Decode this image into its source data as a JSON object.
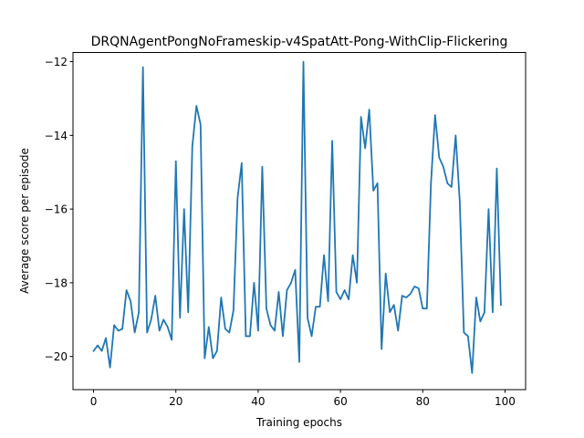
{
  "chart_data": {
    "type": "line",
    "title": "DRQNAgentPongNoFrameskip-v4SpatAtt-Pong-WithClip-Flickering",
    "xlabel": "Training epochs",
    "ylabel": "Average score per episode",
    "xlim": [
      -5,
      105
    ],
    "ylim": [
      -20.9,
      -11.75
    ],
    "xticks": [
      0,
      20,
      40,
      60,
      80,
      100
    ],
    "yticks": [
      -20,
      -18,
      -16,
      -14,
      -12
    ],
    "xtick_labels": [
      "0",
      "20",
      "40",
      "60",
      "80",
      "100"
    ],
    "ytick_labels": [
      "−20",
      "−18",
      "−16",
      "−14",
      "−12"
    ],
    "grid": false,
    "line_color": "#1f77b4",
    "series": [
      {
        "x": [
          0,
          1,
          2,
          3,
          4,
          5,
          6,
          7,
          8,
          9,
          10,
          11,
          12,
          13,
          14,
          15,
          16,
          17,
          18,
          19,
          20,
          21,
          22,
          23,
          24,
          25,
          26,
          27,
          28,
          29,
          30,
          31,
          32,
          33,
          34,
          35,
          36,
          37,
          38,
          39,
          40,
          41,
          42,
          43,
          44,
          45,
          46,
          47,
          48,
          49,
          50,
          51,
          52,
          53,
          54,
          55,
          56,
          57,
          58,
          59,
          60,
          61,
          62,
          63,
          64,
          65,
          66,
          67,
          68,
          69,
          70,
          71,
          72,
          73,
          74,
          75,
          76,
          77,
          78,
          79,
          80,
          81,
          82,
          83,
          84,
          85,
          86,
          87,
          88,
          89,
          90,
          91,
          92,
          93,
          94,
          95,
          96,
          97,
          98,
          99
        ],
        "values": [
          -19.85,
          -19.7,
          -19.85,
          -19.5,
          -20.3,
          -19.15,
          -19.3,
          -19.25,
          -18.2,
          -18.5,
          -19.35,
          -18.8,
          -12.15,
          -19.35,
          -19.0,
          -18.35,
          -19.3,
          -19.0,
          -19.2,
          -19.55,
          -14.7,
          -18.95,
          -16.0,
          -18.8,
          -14.3,
          -13.2,
          -13.7,
          -20.05,
          -19.2,
          -20.05,
          -19.85,
          -18.4,
          -19.25,
          -19.35,
          -18.75,
          -15.7,
          -14.75,
          -19.45,
          -19.45,
          -18.0,
          -19.3,
          -14.85,
          -18.7,
          -19.15,
          -19.3,
          -18.25,
          -19.45,
          -18.2,
          -18.0,
          -17.65,
          -20.15,
          -12.0,
          -18.95,
          -19.45,
          -18.65,
          -18.65,
          -17.25,
          -18.5,
          -14.15,
          -18.25,
          -18.45,
          -18.2,
          -18.45,
          -17.25,
          -18.0,
          -13.5,
          -14.35,
          -13.3,
          -15.5,
          -15.3,
          -19.8,
          -17.75,
          -18.8,
          -18.6,
          -19.3,
          -18.35,
          -18.4,
          -18.3,
          -18.1,
          -18.15,
          -18.7,
          -18.7,
          -15.3,
          -13.45,
          -14.6,
          -14.85,
          -15.3,
          -15.4,
          -14.0,
          -15.8,
          -19.35,
          -19.45,
          -20.45,
          -18.4,
          -19.05,
          -18.8,
          -16.0,
          -18.8,
          -14.9,
          -18.6
        ]
      }
    ]
  }
}
